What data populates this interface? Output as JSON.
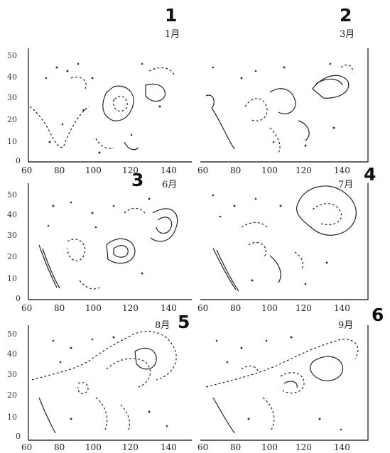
{
  "panels": [
    {
      "id": 1,
      "annotation": "1",
      "month_label": "1月",
      "y_ticks": [
        "50",
        "40",
        "30",
        "20",
        "10",
        "0"
      ],
      "x_ticks": [
        "60",
        "80",
        "100",
        "120",
        "140"
      ]
    },
    {
      "id": 2,
      "annotation": "2",
      "month_label": "3月",
      "y_ticks": [],
      "x_ticks": [
        "60",
        "80",
        "100",
        "120",
        "140"
      ]
    },
    {
      "id": 3,
      "annotation": "3",
      "month_label": "6月",
      "y_ticks": [
        "50",
        "40",
        "30",
        "20",
        "10",
        "0"
      ],
      "x_ticks": [
        "60",
        "80",
        "100",
        "120",
        "140"
      ]
    },
    {
      "id": 4,
      "annotation": "4",
      "month_label": "7月",
      "y_ticks": [],
      "x_ticks": [
        "60",
        "80",
        "100",
        "120",
        "140"
      ]
    },
    {
      "id": 5,
      "annotation": "5",
      "month_label": "8月",
      "y_ticks": [
        "50",
        "40",
        "30",
        "20",
        "10",
        "0"
      ],
      "x_ticks": [
        "60",
        "80",
        "100",
        "120",
        "140"
      ]
    },
    {
      "id": 6,
      "annotation": "6",
      "month_label": "9月",
      "y_ticks": [],
      "x_ticks": [
        "60",
        "80",
        "100",
        "120",
        "140"
      ]
    }
  ]
}
